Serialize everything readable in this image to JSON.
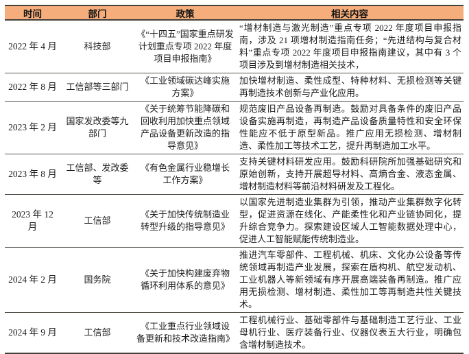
{
  "table": {
    "columns": [
      "时间",
      "部门",
      "政策",
      "相关内容"
    ],
    "rows": [
      {
        "time": "2022 年 4 月",
        "dept": "科技部",
        "policy": "《“十四五”国家重点研发计划重点专项 2022 年度项目申报指南》",
        "content": "“增材制造与激光制造”重点专项 2022 年度项目申报指南，涉及 21 项增材制造指南任务；“先进结构与复合材料”重点专项 2022 年度项目申报指南建议，其中有 3 个项目涉及到增材制造相关技术，"
      },
      {
        "time": "2022 年 8 月",
        "dept": "工信部等三部门",
        "policy": "《工业领域碳达峰实施方案》",
        "content": "加快增材制造、柔性成型、特种材料、无损检测等关键再制造技术创新与产业化应用。"
      },
      {
        "time": "2023 年 2 月",
        "dept": "国家发改委等九部门",
        "policy": "《关于统筹节能降碳和回收利用加快重点领域产品设备更新改造的指导意见》",
        "content": "规范废旧产品设备再制造。鼓励对具备条件的废旧产品设备实施再制造，再制造产品设备质量特性和安全环保性能应不低于原型新品。推广应用无损检测、增材制造、柔性加工等技术工艺，提升再制造加工水平。"
      },
      {
        "time": "2023 年 8 月",
        "dept": "工信部、发改委等",
        "policy": "《有色金属行业稳增长工作方案》",
        "content": "支持关键材料研发应用。鼓励科研院所加强基础研究和原始创新，支持开展超导材料、高熵合金、液态金属、增材制造材料等前沿材料研发及工程化。"
      },
      {
        "time": "2023 年 12 月",
        "dept": "工信部",
        "policy": "《关于加快传统制造业转型升级的指导意见》",
        "content": "以国家先进制造业集群为引领，推动产业集群数字化转型，促进资源在线化、产能柔性化和产业链协同化，提升综合竞争力。探索建设区域人工智能数据处理中心，促进人工智能赋能传统制造业。"
      },
      {
        "time": "2024 年 2 月",
        "dept": "国务院",
        "policy": "《关于加快构建废弃物循环利用体系的意见》",
        "content": "推进汽车零部件、工程机械、机床、文化办公设备等传统领域再制造产业发展，探索在盾构机、航空发动机、工业机器人等新领域有序开展高端装备再制造。推广应用无损检测、增材制造、柔性加工等再制造共性关键技术。"
      },
      {
        "time": "2024 年 9 月",
        "dept": "工信部",
        "policy": "《工业重点行业领域设备更新和技术改造指南》",
        "content": "工程机械行业、基础零部件与基础制造工艺行业、工业母机行业、医疗装备行业、仪器仪表五大行业，明确包含增材制造技术。"
      }
    ]
  },
  "colors": {
    "header_bg": "#F5AD7B",
    "border_dark": "#45403A",
    "row_divider": "#56514A",
    "text": "#1C1C1C"
  }
}
